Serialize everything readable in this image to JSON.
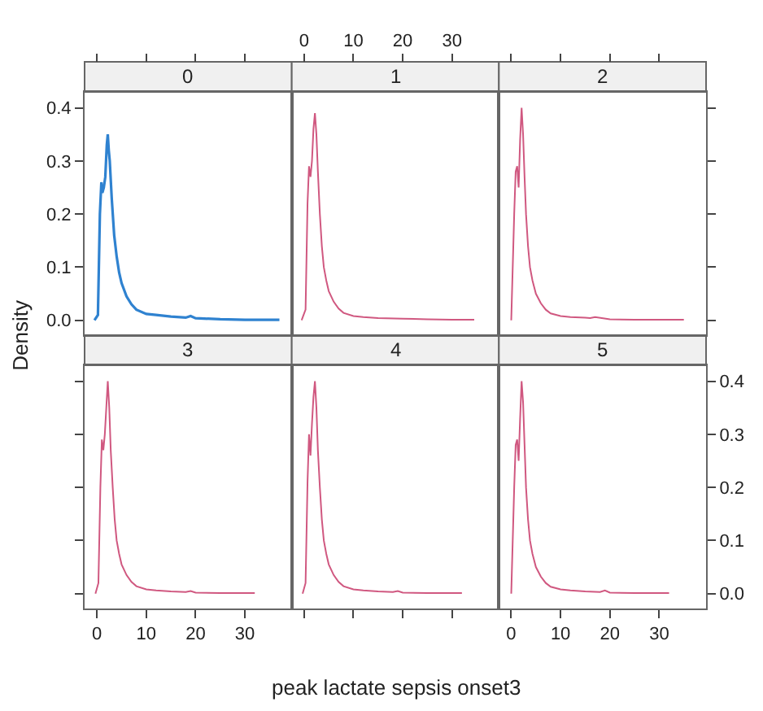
{
  "chart_data": [
    {
      "type": "line",
      "title": "0",
      "ylabel": "Density",
      "color": "#2f82d0",
      "xlim": [
        -2.5,
        39.5
      ],
      "ylim": [
        -0.028,
        0.43
      ],
      "xticks": [
        0,
        10,
        20,
        30
      ],
      "yticks": [
        {
          "value": 0,
          "label": "0.0"
        },
        0.1,
        0.2,
        0.3,
        0.4
      ],
      "tick_labels": "y",
      "x": [
        -0.5,
        0.2,
        0.6,
        0.9,
        1.1,
        1.4,
        1.7,
        2.0,
        2.2,
        2.4,
        2.6,
        3.0,
        3.5,
        4.0,
        4.5,
        5.0,
        6.0,
        7.0,
        8.0,
        10.0,
        12.0,
        15.0,
        18.0,
        19.0,
        20.0,
        25.0,
        30.0,
        37.0
      ],
      "values": [
        0.0,
        0.01,
        0.2,
        0.26,
        0.24,
        0.25,
        0.27,
        0.33,
        0.35,
        0.32,
        0.3,
        0.23,
        0.16,
        0.12,
        0.09,
        0.07,
        0.045,
        0.03,
        0.02,
        0.012,
        0.01,
        0.007,
        0.005,
        0.008,
        0.004,
        0.002,
        0.001,
        0.001
      ]
    },
    {
      "type": "line",
      "title": "1",
      "color": "#d05880",
      "xlim": [
        -2.5,
        39.5
      ],
      "ylim": [
        -0.028,
        0.43
      ],
      "xticks": [
        0,
        10,
        20,
        30
      ],
      "yticks": [
        0.0,
        0.1,
        0.2,
        0.3,
        0.4
      ],
      "tick_labels": "x",
      "x": [
        -0.5,
        0.3,
        0.7,
        1.0,
        1.3,
        1.6,
        1.9,
        2.2,
        2.5,
        2.8,
        3.2,
        3.6,
        4.0,
        4.5,
        5.0,
        6.0,
        7.0,
        8.0,
        10.0,
        12.0,
        15.0,
        20.0,
        25.0,
        30.0,
        34.5
      ],
      "values": [
        0.0,
        0.02,
        0.22,
        0.29,
        0.27,
        0.3,
        0.36,
        0.39,
        0.35,
        0.28,
        0.2,
        0.14,
        0.1,
        0.075,
        0.055,
        0.035,
        0.022,
        0.014,
        0.008,
        0.006,
        0.004,
        0.003,
        0.002,
        0.001,
        0.001
      ]
    },
    {
      "type": "line",
      "title": "2",
      "color": "#d05880",
      "xlim": [
        -2.5,
        39.5
      ],
      "ylim": [
        -0.028,
        0.43
      ],
      "xticks": [
        0,
        10,
        20,
        30
      ],
      "yticks": [
        0.0,
        0.1,
        0.2,
        0.3,
        0.4
      ],
      "tick_labels": false,
      "x": [
        0.0,
        0.6,
        0.9,
        1.2,
        1.5,
        1.8,
        2.1,
        2.4,
        2.7,
        3.0,
        3.4,
        3.8,
        4.3,
        5.0,
        6.0,
        7.0,
        8.0,
        10.0,
        12.0,
        15.0,
        16.0,
        17.0,
        20.0,
        25.0,
        30.0,
        35.0
      ],
      "values": [
        0.0,
        0.2,
        0.28,
        0.29,
        0.25,
        0.34,
        0.4,
        0.35,
        0.27,
        0.2,
        0.14,
        0.1,
        0.075,
        0.05,
        0.032,
        0.02,
        0.013,
        0.008,
        0.006,
        0.005,
        0.004,
        0.006,
        0.002,
        0.001,
        0.001,
        0.001
      ]
    },
    {
      "type": "line",
      "title": "3",
      "color": "#d05880",
      "xlim": [
        -2.5,
        39.5
      ],
      "ylim": [
        -0.028,
        0.43
      ],
      "xticks": [
        0,
        10,
        20,
        30
      ],
      "yticks": [
        0.0,
        0.1,
        0.2,
        0.3,
        0.4
      ],
      "tick_labels": "x",
      "x": [
        -0.3,
        0.3,
        0.7,
        1.0,
        1.3,
        1.6,
        1.9,
        2.2,
        2.5,
        2.8,
        3.2,
        3.6,
        4.0,
        4.5,
        5.0,
        6.0,
        7.0,
        8.0,
        10.0,
        12.0,
        15.0,
        18.0,
        19.0,
        20.0,
        25.0,
        32.0
      ],
      "values": [
        0.0,
        0.02,
        0.2,
        0.29,
        0.27,
        0.3,
        0.35,
        0.4,
        0.35,
        0.27,
        0.2,
        0.14,
        0.1,
        0.075,
        0.055,
        0.035,
        0.022,
        0.014,
        0.008,
        0.006,
        0.004,
        0.003,
        0.005,
        0.002,
        0.001,
        0.001
      ]
    },
    {
      "type": "line",
      "title": "4",
      "xlabel": "peak lactate sepsis onset3",
      "color": "#d05880",
      "xlim": [
        -2.5,
        39.5
      ],
      "ylim": [
        -0.028,
        0.43
      ],
      "xticks": [
        0,
        10,
        20,
        30
      ],
      "yticks": [
        0.0,
        0.1,
        0.2,
        0.3,
        0.4
      ],
      "tick_labels": false,
      "x": [
        -0.3,
        0.3,
        0.7,
        1.0,
        1.3,
        1.6,
        1.9,
        2.2,
        2.5,
        2.8,
        3.2,
        3.6,
        4.0,
        4.5,
        5.0,
        6.0,
        7.0,
        8.0,
        10.0,
        12.0,
        15.0,
        18.0,
        19.0,
        20.0,
        25.0,
        32.0
      ],
      "values": [
        0.0,
        0.02,
        0.21,
        0.3,
        0.26,
        0.32,
        0.37,
        0.4,
        0.35,
        0.27,
        0.2,
        0.14,
        0.1,
        0.075,
        0.055,
        0.035,
        0.022,
        0.014,
        0.008,
        0.006,
        0.004,
        0.003,
        0.005,
        0.002,
        0.001,
        0.001
      ]
    },
    {
      "type": "line",
      "title": "5",
      "color": "#d05880",
      "xlim": [
        -2.5,
        39.5
      ],
      "ylim": [
        -0.028,
        0.43
      ],
      "xticks": [
        0,
        10,
        20,
        30
      ],
      "yticks": [
        {
          "value": 0,
          "label": "0.0"
        },
        0.1,
        0.2,
        0.3,
        0.4
      ],
      "x": [
        0.0,
        0.6,
        0.9,
        1.2,
        1.5,
        1.8,
        2.1,
        2.4,
        2.7,
        3.0,
        3.4,
        3.8,
        4.3,
        5.0,
        6.0,
        7.0,
        8.0,
        10.0,
        12.0,
        15.0,
        18.0,
        19.0,
        20.0,
        25.0,
        32.0
      ],
      "values": [
        0.0,
        0.2,
        0.28,
        0.29,
        0.25,
        0.33,
        0.4,
        0.36,
        0.28,
        0.2,
        0.14,
        0.1,
        0.075,
        0.05,
        0.032,
        0.02,
        0.013,
        0.008,
        0.006,
        0.004,
        0.003,
        0.006,
        0.002,
        0.001,
        0.001
      ]
    }
  ]
}
